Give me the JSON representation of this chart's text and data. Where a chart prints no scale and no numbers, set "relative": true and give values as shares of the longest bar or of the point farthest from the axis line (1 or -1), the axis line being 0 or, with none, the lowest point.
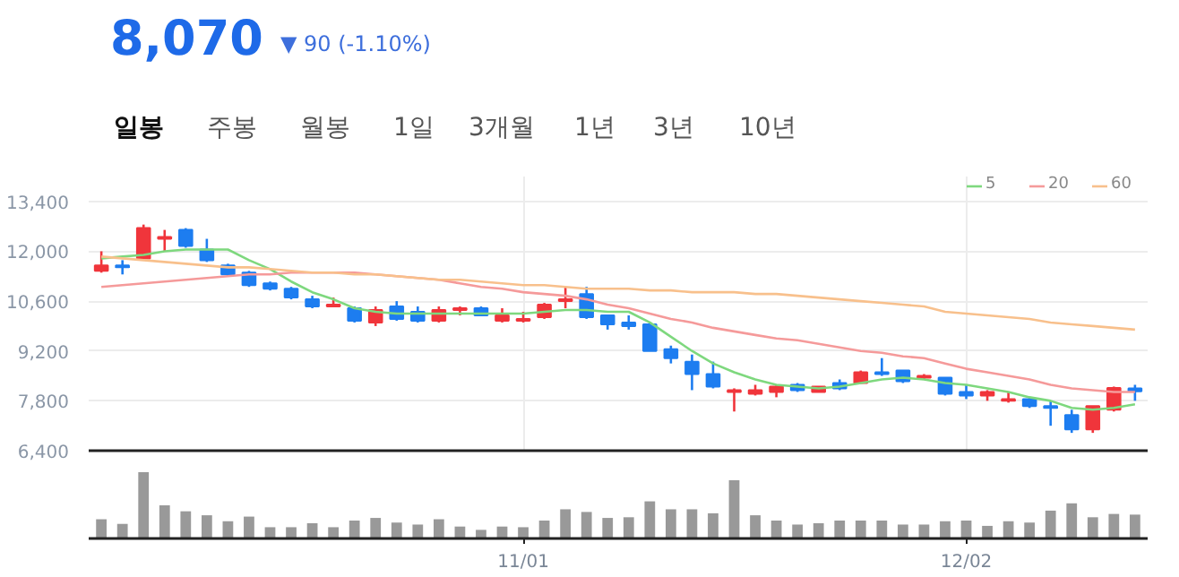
{
  "chart_data": [
    {
      "type": "other",
      "title": "8,070",
      "subtitle": "▼ 90 (-1.10%)",
      "annotations": [
        "일봉",
        "주봉",
        "월봉",
        "1일",
        "3개월",
        "1년",
        "3년",
        "10년"
      ]
    },
    {
      "type": "candlestick",
      "categories": [
        null,
        null,
        null,
        null,
        null,
        null,
        null,
        null,
        null,
        null,
        null,
        null,
        null,
        null,
        null,
        null,
        null,
        null,
        null,
        null,
        null,
        null,
        null,
        null,
        null,
        null,
        null,
        null,
        null,
        null,
        null,
        null,
        null,
        null,
        null,
        null,
        null,
        null,
        null,
        null,
        null,
        null,
        null,
        null,
        null,
        null,
        null,
        null,
        null,
        null
      ],
      "ohlc": [
        [
          11450,
          12000,
          11400,
          11600
        ],
        [
          11600,
          11750,
          11350,
          11550
        ],
        [
          11800,
          12750,
          11800,
          12650
        ],
        [
          12350,
          12600,
          12000,
          12400
        ],
        [
          12600,
          12650,
          12100,
          12150
        ],
        [
          12050,
          12350,
          11700,
          11750
        ],
        [
          11600,
          11650,
          11300,
          11350
        ],
        [
          11400,
          11450,
          11000,
          11050
        ],
        [
          11100,
          11150,
          10900,
          10950
        ],
        [
          10950,
          11000,
          10650,
          10700
        ],
        [
          10650,
          10750,
          10400,
          10450
        ],
        [
          10450,
          10700,
          10450,
          10500
        ],
        [
          10400,
          10450,
          10000,
          10050
        ],
        [
          10000,
          10450,
          9900,
          10350
        ],
        [
          10450,
          10600,
          10050,
          10100
        ],
        [
          10300,
          10450,
          10000,
          10050
        ],
        [
          10050,
          10450,
          10000,
          10350
        ],
        [
          10350,
          10450,
          10200,
          10400
        ],
        [
          10400,
          10450,
          10200,
          10200
        ],
        [
          10050,
          10400,
          10000,
          10200
        ],
        [
          10050,
          10300,
          10000,
          10100
        ],
        [
          10150,
          10550,
          10100,
          10500
        ],
        [
          10600,
          11000,
          10400,
          10650
        ],
        [
          10800,
          11000,
          10100,
          10150
        ],
        [
          10200,
          10200,
          9800,
          9950
        ],
        [
          10000,
          10200,
          9800,
          9900
        ],
        [
          9950,
          10000,
          9200,
          9200
        ],
        [
          9250,
          9350,
          8850,
          9000
        ],
        [
          8900,
          9100,
          8100,
          8550
        ],
        [
          8550,
          8900,
          8150,
          8200
        ],
        [
          8050,
          8150,
          7500,
          8100
        ],
        [
          8000,
          8250,
          7950,
          8100
        ],
        [
          8050,
          8250,
          7900,
          8200
        ],
        [
          8250,
          8300,
          8050,
          8100
        ],
        [
          8050,
          8200,
          8050,
          8200
        ],
        [
          8300,
          8400,
          8100,
          8150
        ],
        [
          8300,
          8650,
          8300,
          8600
        ],
        [
          8600,
          9000,
          8500,
          8550
        ],
        [
          8650,
          8650,
          8300,
          8350
        ],
        [
          8450,
          8550,
          8400,
          8500
        ],
        [
          8450,
          8450,
          7950,
          8000
        ],
        [
          8050,
          8250,
          7850,
          7950
        ],
        [
          7950,
          8100,
          7800,
          8050
        ],
        [
          7800,
          8050,
          7750,
          7850
        ],
        [
          7850,
          7900,
          7600,
          7650
        ],
        [
          7650,
          7800,
          7100,
          7600
        ],
        [
          7400,
          7550,
          6900,
          7000
        ],
        [
          7000,
          7650,
          6900,
          7650
        ],
        [
          7550,
          8200,
          7500,
          8160
        ],
        [
          8150,
          8250,
          7800,
          8070
        ]
      ],
      "colors": [
        "#f0353b",
        "#1d7df0",
        "#f0353b",
        "#f0353b",
        "#1d7df0",
        "#1d7df0",
        "#1d7df0",
        "#1d7df0",
        "#1d7df0",
        "#1d7df0",
        "#1d7df0",
        "#f0353b",
        "#1d7df0",
        "#f0353b",
        "#1d7df0",
        "#1d7df0",
        "#f0353b",
        "#f0353b",
        "#1d7df0",
        "#f0353b",
        "#f0353b",
        "#f0353b",
        "#f0353b",
        "#1d7df0",
        "#1d7df0",
        "#1d7df0",
        "#1d7df0",
        "#1d7df0",
        "#1d7df0",
        "#1d7df0",
        "#f0353b",
        "#f0353b",
        "#f0353b",
        "#1d7df0",
        "#f0353b",
        "#1d7df0",
        "#f0353b",
        "#1d7df0",
        "#1d7df0",
        "#f0353b",
        "#1d7df0",
        "#1d7df0",
        "#f0353b",
        "#f0353b",
        "#1d7df0",
        "#1d7df0",
        "#1d7df0",
        "#f0353b",
        "#f0353b",
        "#1d7df0"
      ],
      "series": [
        {
          "type": "line",
          "name": "5",
          "color": "#7ed87e",
          "values": [
            11800,
            11850,
            11900,
            12000,
            12050,
            12050,
            12050,
            11750,
            11500,
            11150,
            10850,
            10650,
            10400,
            10300,
            10250,
            10250,
            10250,
            10250,
            10250,
            10250,
            10250,
            10300,
            10350,
            10350,
            10300,
            10300,
            10000,
            9600,
            9200,
            8850,
            8600,
            8400,
            8250,
            8200,
            8150,
            8200,
            8300,
            8400,
            8450,
            8400,
            8300,
            8250,
            8150,
            8050,
            7900,
            7800,
            7600,
            7550,
            7600,
            7700
          ]
        },
        {
          "type": "line",
          "name": "20",
          "color": "#f59a9a",
          "values": [
            11000,
            11050,
            11100,
            11150,
            11200,
            11250,
            11300,
            11350,
            11350,
            11400,
            11400,
            11400,
            11400,
            11350,
            11300,
            11250,
            11200,
            11100,
            11000,
            10950,
            10850,
            10800,
            10750,
            10650,
            10500,
            10400,
            10250,
            10100,
            10000,
            9850,
            9750,
            9650,
            9550,
            9500,
            9400,
            9300,
            9200,
            9150,
            9050,
            9000,
            8850,
            8700,
            8600,
            8500,
            8400,
            8250,
            8150,
            8100,
            8050,
            8050
          ]
        },
        {
          "type": "line",
          "name": "60",
          "color": "#f8c08c",
          "values": [
            11850,
            11800,
            11750,
            11700,
            11650,
            11600,
            11550,
            11550,
            11500,
            11450,
            11400,
            11400,
            11350,
            11350,
            11300,
            11250,
            11200,
            11200,
            11150,
            11100,
            11050,
            11050,
            11000,
            10950,
            10950,
            10950,
            10900,
            10900,
            10850,
            10850,
            10850,
            10800,
            10800,
            10750,
            10700,
            10650,
            10600,
            10550,
            10500,
            10450,
            10300,
            10250,
            10200,
            10150,
            10100,
            10000,
            9950,
            9900,
            9850,
            9800
          ]
        }
      ],
      "ylim": [
        6400,
        14100
      ],
      "yticks": [
        {
          "value": 6400,
          "label": "6,400"
        },
        {
          "value": 7800,
          "label": "7,800"
        },
        {
          "value": 9200,
          "label": "9,200"
        },
        {
          "value": 10600,
          "label": "10,600"
        },
        {
          "value": 12000,
          "label": "12,000"
        },
        {
          "value": 13400,
          "label": "13,400"
        }
      ],
      "grid": true,
      "legend": "top right",
      "tick_labels": "y"
    },
    {
      "type": "bar",
      "relative": true,
      "tick_labels": "x",
      "categories": [
        null,
        null,
        null,
        null,
        null,
        null,
        null,
        null,
        null,
        null,
        null,
        null,
        null,
        null,
        null,
        null,
        null,
        null,
        null,
        null,
        "11/01",
        null,
        null,
        null,
        null,
        null,
        null,
        null,
        null,
        null,
        null,
        null,
        null,
        null,
        null,
        null,
        null,
        null,
        null,
        null,
        null,
        "12/02",
        null,
        null,
        null,
        null,
        null,
        null,
        null,
        null
      ],
      "color": "#999999",
      "values": [
        0.29,
        0.22,
        1.0,
        0.5,
        0.41,
        0.35,
        0.26,
        0.33,
        0.17,
        0.17,
        0.23,
        0.17,
        0.27,
        0.31,
        0.24,
        0.21,
        0.29,
        0.18,
        0.13,
        0.18,
        0.17,
        0.27,
        0.44,
        0.4,
        0.31,
        0.32,
        0.56,
        0.44,
        0.44,
        0.38,
        0.88,
        0.35,
        0.27,
        0.21,
        0.23,
        0.27,
        0.27,
        0.27,
        0.21,
        0.21,
        0.26,
        0.27,
        0.19,
        0.26,
        0.24,
        0.42,
        0.53,
        0.32,
        0.37,
        0.36
      ]
    }
  ]
}
